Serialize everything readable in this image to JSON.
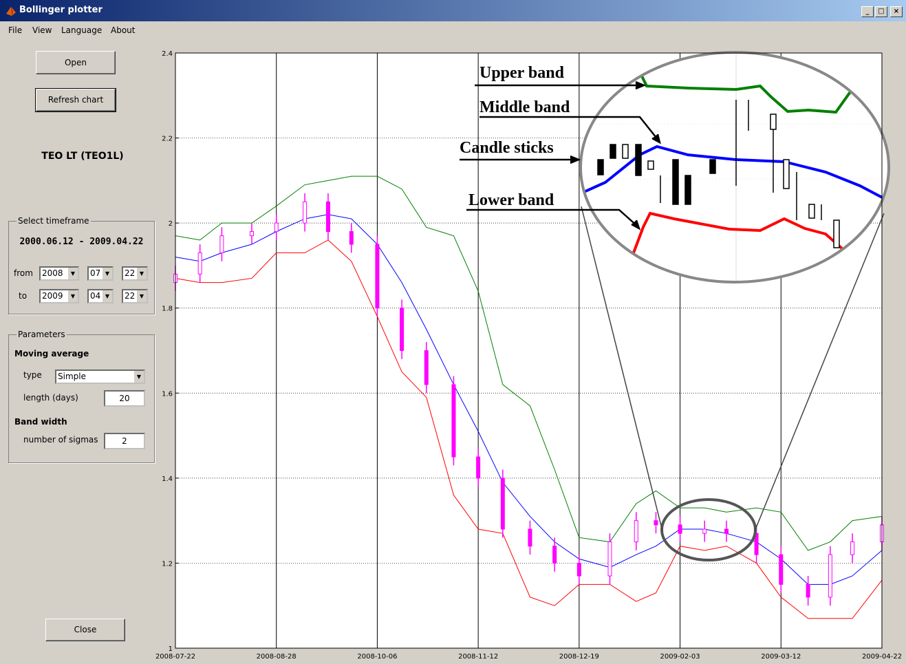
{
  "window": {
    "title": "Bollinger plotter"
  },
  "menu": [
    "File",
    "View",
    "Language",
    "About"
  ],
  "panel": {
    "open_button": "Open",
    "refresh_button": "Refresh chart",
    "ticker": "TEO LT (TEO1L)",
    "timeframe": {
      "legend": "Select timeframe",
      "range": "2000.06.12 - 2009.04.22",
      "from_label": "from",
      "from": [
        "2008",
        "07",
        "22"
      ],
      "to_label": "to",
      "to": [
        "2009",
        "04",
        "22"
      ]
    },
    "parameters": {
      "legend": "Parameters",
      "moving_average": "Moving average",
      "type_label": "type",
      "type": "Simple",
      "length_label": "length (days)",
      "length": 20,
      "band_width": "Band width",
      "sigmas_label": "number of sigmas",
      "sigmas": 2
    },
    "close_button": "Close"
  },
  "chart_data": {
    "type": "candlestick",
    "x": [
      "2008-07-22",
      "2008-07-31",
      "2008-08-08",
      "2008-08-19",
      "2008-08-28",
      "2008-09-08",
      "2008-09-17",
      "2008-09-26",
      "2008-10-06",
      "2008-10-15",
      "2008-10-24",
      "2008-11-03",
      "2008-11-12",
      "2008-11-21",
      "2008-12-01",
      "2008-12-10",
      "2008-12-19",
      "2009-01-02",
      "2009-01-14",
      "2009-01-23",
      "2009-02-03",
      "2009-02-12",
      "2009-02-20",
      "2009-03-03",
      "2009-03-12",
      "2009-03-23",
      "2009-04-01",
      "2009-04-10",
      "2009-04-22"
    ],
    "series": [
      {
        "name": "Upper band",
        "color": "#008000",
        "values": [
          1.97,
          1.96,
          2.0,
          2.0,
          2.04,
          2.09,
          2.1,
          2.11,
          2.11,
          2.08,
          1.99,
          1.97,
          1.84,
          1.62,
          1.57,
          1.42,
          1.26,
          1.25,
          1.34,
          1.37,
          1.33,
          1.33,
          1.32,
          1.33,
          1.32,
          1.23,
          1.25,
          1.3,
          1.31
        ]
      },
      {
        "name": "Middle band",
        "color": "#0000ff",
        "values": [
          1.92,
          1.91,
          1.93,
          1.95,
          1.98,
          2.01,
          2.02,
          2.01,
          1.95,
          1.86,
          1.75,
          1.62,
          1.51,
          1.39,
          1.31,
          1.25,
          1.21,
          1.19,
          1.22,
          1.24,
          1.28,
          1.28,
          1.27,
          1.25,
          1.21,
          1.15,
          1.15,
          1.17,
          1.23
        ]
      },
      {
        "name": "Lower band",
        "color": "#ff0000",
        "values": [
          1.87,
          1.86,
          1.86,
          1.87,
          1.93,
          1.93,
          1.96,
          1.91,
          1.78,
          1.65,
          1.59,
          1.36,
          1.28,
          1.27,
          1.12,
          1.1,
          1.15,
          1.15,
          1.11,
          1.13,
          1.24,
          1.23,
          1.24,
          1.2,
          1.12,
          1.07,
          1.07,
          1.07,
          1.16
        ]
      }
    ],
    "candles": {
      "name": "Candle sticks",
      "color": "#ff00ff",
      "open": [
        1.86,
        1.88,
        1.93,
        1.97,
        1.98,
        2.0,
        2.05,
        1.98,
        1.95,
        1.8,
        1.7,
        1.62,
        1.45,
        1.4,
        1.28,
        1.24,
        1.2,
        1.17,
        1.25,
        1.3,
        1.29,
        1.27,
        1.28,
        1.27,
        1.22,
        1.15,
        1.12,
        1.22,
        1.25
      ],
      "high": [
        1.9,
        1.95,
        1.99,
        2.0,
        2.02,
        2.07,
        2.07,
        2.0,
        1.97,
        1.82,
        1.72,
        1.64,
        1.47,
        1.42,
        1.3,
        1.26,
        1.22,
        1.27,
        1.32,
        1.32,
        1.31,
        1.3,
        1.3,
        1.29,
        1.24,
        1.17,
        1.24,
        1.27,
        1.31
      ],
      "low": [
        1.84,
        1.86,
        1.91,
        1.95,
        1.96,
        1.98,
        1.96,
        1.93,
        1.78,
        1.68,
        1.6,
        1.43,
        1.38,
        1.26,
        1.22,
        1.18,
        1.15,
        1.15,
        1.23,
        1.27,
        1.25,
        1.25,
        1.25,
        1.2,
        1.13,
        1.1,
        1.1,
        1.2,
        1.23
      ],
      "close": [
        1.88,
        1.93,
        1.97,
        1.98,
        2.0,
        2.05,
        1.98,
        1.95,
        1.8,
        1.7,
        1.62,
        1.45,
        1.4,
        1.28,
        1.24,
        1.2,
        1.17,
        1.25,
        1.3,
        1.29,
        1.27,
        1.28,
        1.27,
        1.22,
        1.15,
        1.12,
        1.22,
        1.25,
        1.29
      ]
    },
    "xticks": [
      "2008-07-22",
      "2008-08-28",
      "2008-10-06",
      "2008-11-12",
      "2008-12-19",
      "2009-02-03",
      "2009-03-12",
      "2009-04-22"
    ],
    "ylim": [
      1,
      2.4
    ],
    "yticks": [
      1,
      1.2,
      1.4,
      1.6,
      1.8,
      2,
      2.2,
      2.4
    ],
    "grid": true
  }
}
